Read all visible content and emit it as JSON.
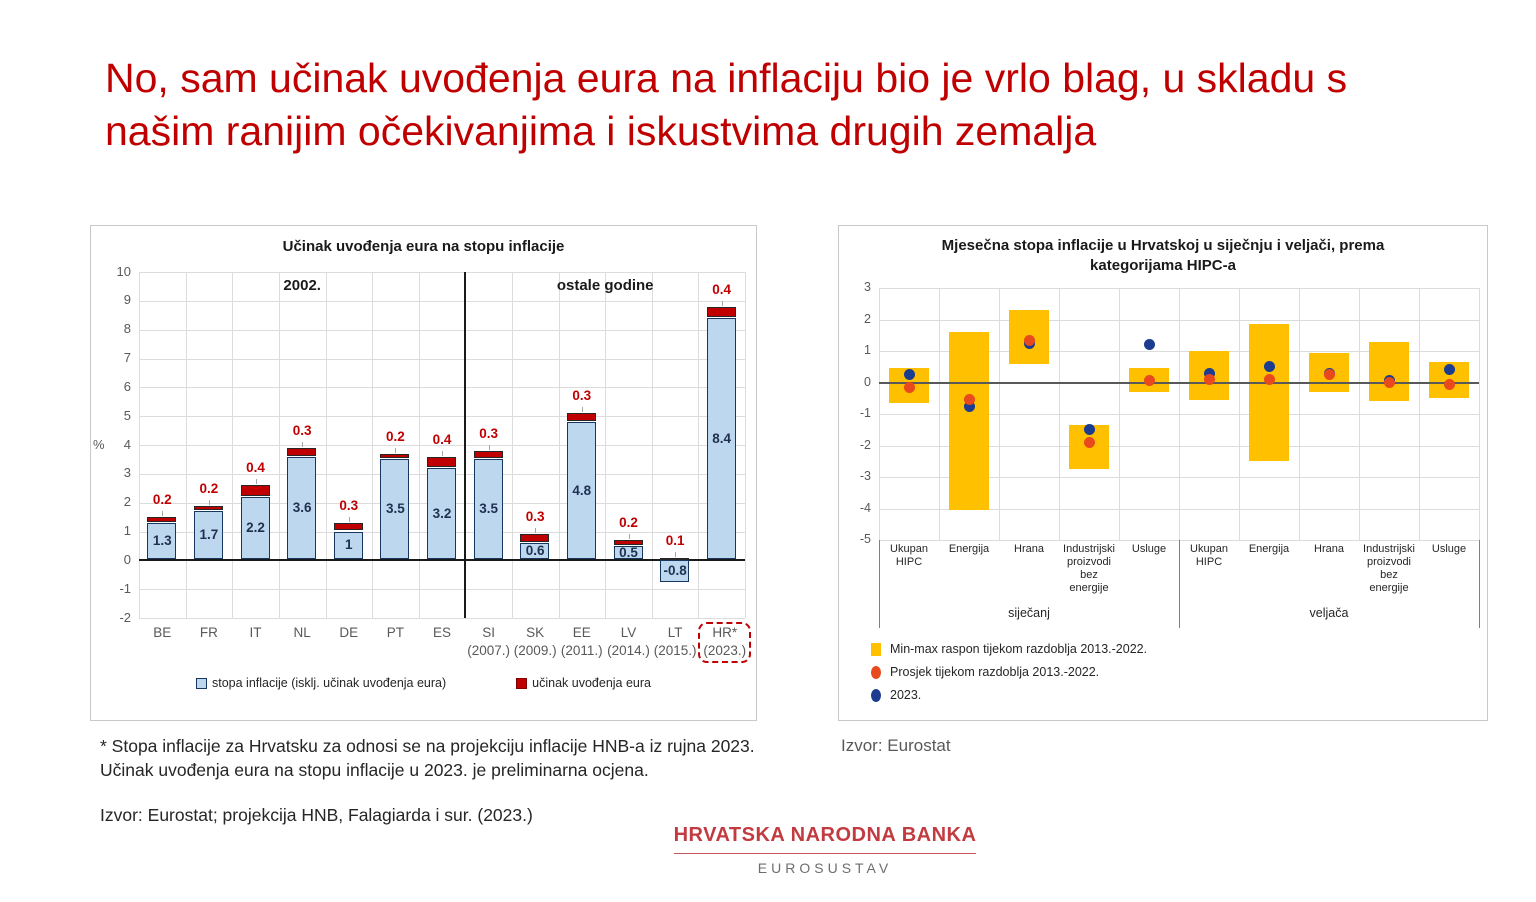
{
  "slide_title": "No, sam učinak uvođenja eura na inflaciju bio je vrlo blag, u skladu s našim ranijim očekivanjima i iskustvima drugih zemalja",
  "footnote": "* Stopa inflacije za Hrvatsku za odnosi se na projekciju inflacije HNB-a iz rujna 2023. Učinak uvođenja eura na stopu inflacije u 2023. je preliminarna ocjena.",
  "source_left": "Izvor: Eurostat; projekcija HNB, Falagiarda i sur. (2023.)",
  "source_right": "Izvor: Eurostat",
  "logo": {
    "line1": "HRVATSKA NARODNA BANKA",
    "line2": "EUROSUSTAV"
  },
  "colors": {
    "title_red": "#C00000",
    "bar_blue": "#BDD7EE",
    "bar_blue_border": "#17375E",
    "bar_red": "#C00000",
    "range_yellow": "#FFC000",
    "avg_orange": "#E8491D",
    "dot_blue_2023": "#1B3C8F"
  },
  "chart_data": [
    {
      "type": "bar",
      "subtype": "stacked",
      "title": "Učinak uvođenja eura na stopu inflacije",
      "ylabel": "%",
      "ylim": [
        -2,
        10
      ],
      "grid": true,
      "categories": [
        "BE",
        "FR",
        "IT",
        "NL",
        "DE",
        "PT",
        "ES",
        "SI",
        "SK",
        "EE",
        "LV",
        "LT",
        "HR*"
      ],
      "year_labels": [
        "",
        "",
        "",
        "",
        "",
        "",
        "",
        "(2007.)",
        "(2009.)",
        "(2011.)",
        "(2014.)",
        "(2015.)",
        "(2023.)"
      ],
      "highlight_category": "HR*",
      "sections": [
        {
          "label": "2002.",
          "center_slot": 3.5
        },
        {
          "label": "ostale godine",
          "center_slot": 10
        }
      ],
      "divider_after_index": 6,
      "series": [
        {
          "name": "stopa inflacije (isklj. učinak uvođenja eura)",
          "values": [
            1.3,
            1.7,
            2.2,
            3.6,
            1,
            3.5,
            3.2,
            3.5,
            0.6,
            4.8,
            0.5,
            -0.8,
            8.4
          ]
        },
        {
          "name": "učinak uvođenja eura",
          "values": [
            0.2,
            0.2,
            0.4,
            0.3,
            0.3,
            0.2,
            0.4,
            0.3,
            0.3,
            0.3,
            0.2,
            0.1,
            0.4
          ]
        }
      ],
      "legend_position": "bottom-center"
    },
    {
      "type": "range-dot",
      "title": "Mjesečna stopa inflacije u Hrvatskoj u siječnju i veljači, prema kategorijama HIPC-a",
      "ylim": [
        -5,
        3
      ],
      "grid": true,
      "groups": [
        "siječanj",
        "veljača"
      ],
      "categories": [
        "Ukupan HIPC",
        "Energija",
        "Hrana",
        "Industrijski proizvodi bez energije",
        "Usluge"
      ],
      "series": [
        {
          "name": "Min-max raspon tijekom razdoblja 2013.-2022.",
          "type": "range",
          "values": [
            [
              -0.65,
              0.45
            ],
            [
              -4.05,
              1.6
            ],
            [
              0.6,
              2.3
            ],
            [
              -2.75,
              -1.35
            ],
            [
              -0.3,
              0.45
            ],
            [
              -0.55,
              1.0
            ],
            [
              -2.5,
              1.85
            ],
            [
              -0.3,
              0.95
            ],
            [
              -0.6,
              1.3
            ],
            [
              -0.5,
              0.65
            ]
          ]
        },
        {
          "name": "Prosjek tijekom razdoblja 2013.-2022.",
          "type": "point",
          "values": [
            -0.15,
            -0.55,
            1.35,
            -1.9,
            0.05,
            0.1,
            0.1,
            0.25,
            0.0,
            -0.05
          ]
        },
        {
          "name": "2023.",
          "type": "point",
          "values": [
            0.25,
            -0.75,
            1.25,
            -1.5,
            1.2,
            0.3,
            0.5,
            0.3,
            0.05,
            0.4
          ]
        }
      ],
      "legend_position": "bottom-left"
    }
  ]
}
